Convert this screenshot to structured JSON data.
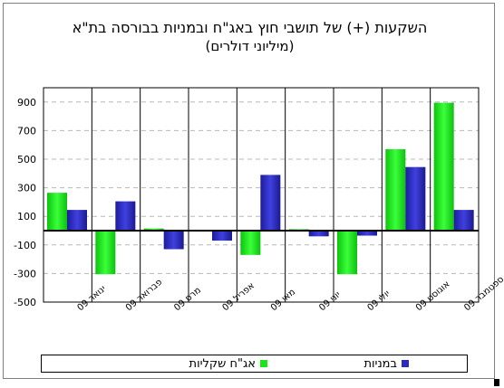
{
  "chart_data": {
    "type": "bar",
    "title": "השקעות (+) של תושבי חוץ באג\"ח ובמניות בבורסה בת\"א",
    "subtitle": "(מיליוני דולרים)",
    "categories": [
      "ינואר 09",
      "פברואר 09",
      "מרס 09",
      "אפריל 09",
      "מאי 09",
      "יוני 09",
      "יולי 09",
      "אוגוסט 09",
      "ספטמבר 09"
    ],
    "series": [
      {
        "name": "אג\"ח שקליות",
        "color": "#19e619",
        "values": [
          265,
          -305,
          15,
          0,
          -170,
          10,
          -305,
          570,
          895
        ]
      },
      {
        "name": "במניות",
        "color": "#2b2bc4",
        "values": [
          145,
          205,
          -130,
          -70,
          390,
          -40,
          -35,
          445,
          145
        ]
      }
    ],
    "ylim": [
      -500,
      1000
    ],
    "yticks": [
      -500,
      -300,
      -100,
      100,
      300,
      500,
      700,
      900
    ],
    "grid": true,
    "legend": "bottom"
  }
}
